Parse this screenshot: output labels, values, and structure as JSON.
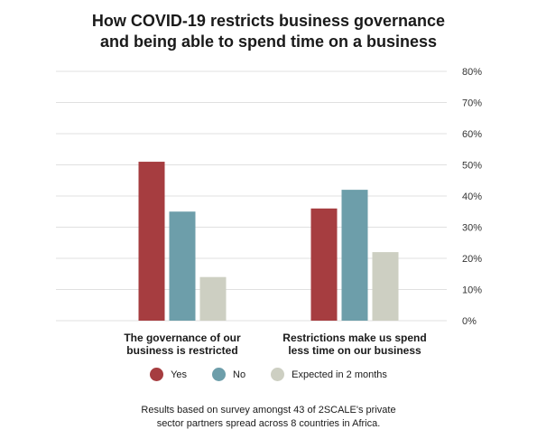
{
  "title_lines": [
    "How COVID-19 restricts business governance",
    "and being able to spend time on a business"
  ],
  "footnote_lines": [
    "Results based on survey amongst 43 of 2SCALE's private",
    "sector partners spread across 8 countries in Africa."
  ],
  "colors": {
    "yes": "#a63d40",
    "no": "#6d9eaa",
    "expected": "#cdcfc2",
    "grid": "#e0e0e0"
  },
  "chart_data": {
    "type": "bar",
    "title": "How COVID-19 restricts business governance and being able to spend time on a business",
    "categories": [
      [
        "The governance of our",
        "business is restricted"
      ],
      [
        "Restrictions make us spend",
        "less time on our business"
      ]
    ],
    "series": [
      {
        "name": "Yes",
        "values": [
          51,
          36
        ]
      },
      {
        "name": "No",
        "values": [
          35,
          42
        ]
      },
      {
        "name": "Expected in 2 months",
        "values": [
          14,
          22
        ]
      }
    ],
    "ylim": [
      0,
      80
    ],
    "yticks": [
      "0%",
      "10%",
      "20%",
      "30%",
      "40%",
      "50%",
      "60%",
      "70%",
      "80%"
    ],
    "grid": true,
    "legend": "bottom"
  }
}
